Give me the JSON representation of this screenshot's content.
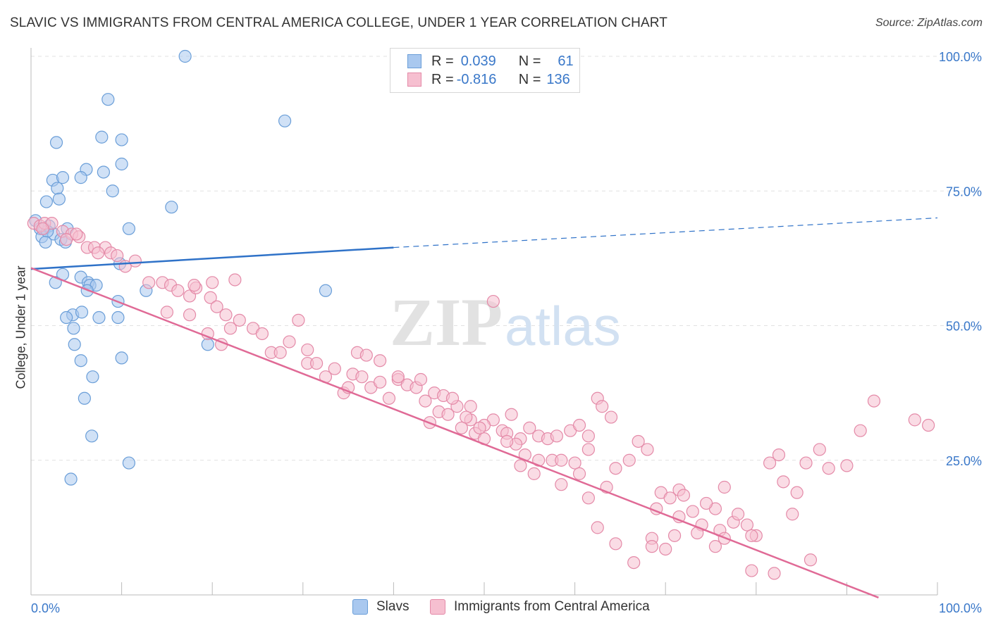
{
  "title": "SLAVIC VS IMMIGRANTS FROM CENTRAL AMERICA COLLEGE, UNDER 1 YEAR CORRELATION CHART",
  "source": "Source: ZipAtlas.com",
  "watermark": {
    "zip": "ZIP",
    "atlas": "atlas"
  },
  "legend_top": [
    {
      "r_label": "R =",
      "r_value": "0.039",
      "n_label": "N =",
      "n_value": "61",
      "color": "#a9c8ef",
      "border": "#6a9ed8"
    },
    {
      "r_label": "R =",
      "r_value": "-0.816",
      "n_label": "N =",
      "n_value": "136",
      "color": "#f6bfd0",
      "border": "#e48aa8"
    }
  ],
  "legend_bottom": [
    {
      "label": "Slavs",
      "color": "#a9c8ef",
      "border": "#6a9ed8"
    },
    {
      "label": "Immigrants from Central America",
      "color": "#f6bfd0",
      "border": "#e48aa8"
    }
  ],
  "chart_data": {
    "type": "scatter",
    "title": "SLAVIC VS IMMIGRANTS FROM CENTRAL AMERICA COLLEGE, UNDER 1 YEAR CORRELATION CHART",
    "xlabel": "",
    "ylabel": "College, Under 1 year",
    "xlim": [
      0,
      100
    ],
    "ylim": [
      0,
      100
    ],
    "x_tick_labels": [
      "0.0%",
      "100.0%"
    ],
    "y_tick_labels": [
      "25.0%",
      "50.0%",
      "75.0%",
      "100.0%"
    ],
    "y_ticks": [
      25,
      50,
      75,
      100
    ],
    "grid": true,
    "legend_position": "top-center",
    "series": [
      {
        "name": "Slavs",
        "color": "#6a9ed8",
        "fill": "#a9c8ef",
        "line_color": "#2f72c8",
        "trend": {
          "x": [
            0,
            40
          ],
          "y": [
            60.5,
            64.5
          ],
          "dashed_to": [
            100,
            70.0
          ]
        },
        "points": [
          [
            17,
            100
          ],
          [
            8.5,
            92
          ],
          [
            28,
            88
          ],
          [
            2.8,
            84
          ],
          [
            7.8,
            85
          ],
          [
            10,
            84.5
          ],
          [
            10,
            80
          ],
          [
            6.1,
            79
          ],
          [
            2.4,
            77
          ],
          [
            3.5,
            77.5
          ],
          [
            5.5,
            77.5
          ],
          [
            8,
            78.5
          ],
          [
            2.9,
            75.5
          ],
          [
            9,
            75
          ],
          [
            3.1,
            73.5
          ],
          [
            1.7,
            73
          ],
          [
            15.5,
            72
          ],
          [
            0.5,
            69.5
          ],
          [
            1,
            68
          ],
          [
            1.5,
            68
          ],
          [
            2,
            68.5
          ],
          [
            2.5,
            67
          ],
          [
            3.3,
            66
          ],
          [
            1.2,
            66.5
          ],
          [
            1.8,
            67.5
          ],
          [
            1.6,
            65.5
          ],
          [
            3.8,
            65.5
          ],
          [
            10.8,
            68
          ],
          [
            4,
            68
          ],
          [
            9.8,
            61.5
          ],
          [
            2.7,
            58
          ],
          [
            3.5,
            59.5
          ],
          [
            5.5,
            59
          ],
          [
            6.3,
            58
          ],
          [
            6.5,
            57.5
          ],
          [
            7.2,
            57.5
          ],
          [
            6.2,
            56.5
          ],
          [
            12.7,
            56.5
          ],
          [
            32.5,
            56.5
          ],
          [
            9.6,
            54.5
          ],
          [
            4.6,
            52
          ],
          [
            5.6,
            52.5
          ],
          [
            3.9,
            51.5
          ],
          [
            7.5,
            51.5
          ],
          [
            9.6,
            51.5
          ],
          [
            4.7,
            49.5
          ],
          [
            4.8,
            46.5
          ],
          [
            19.5,
            46.5
          ],
          [
            5.5,
            43.5
          ],
          [
            10,
            44
          ],
          [
            6.8,
            40.5
          ],
          [
            5.9,
            36.5
          ],
          [
            6.7,
            29.5
          ],
          [
            10.8,
            24.5
          ],
          [
            4.4,
            21.5
          ]
        ]
      },
      {
        "name": "Immigrants from Central America",
        "color": "#e48aa8",
        "fill": "#f6bfd0",
        "line_color": "#e06a96",
        "trend": {
          "x": [
            0,
            93.5
          ],
          "y": [
            60.7,
            -0.5
          ]
        },
        "points": [
          [
            0.3,
            69
          ],
          [
            1,
            68.5
          ],
          [
            1.5,
            69
          ],
          [
            2.3,
            69
          ],
          [
            1.3,
            68
          ],
          [
            3.5,
            67.5
          ],
          [
            4.5,
            67
          ],
          [
            5.3,
            66.5
          ],
          [
            6.2,
            64.5
          ],
          [
            7,
            64.5
          ],
          [
            8.2,
            64.5
          ],
          [
            7.4,
            63.5
          ],
          [
            8.8,
            63.5
          ],
          [
            9.5,
            63
          ],
          [
            3.9,
            66
          ],
          [
            5,
            67
          ],
          [
            10.4,
            61
          ],
          [
            11.5,
            62
          ],
          [
            13,
            58
          ],
          [
            14.5,
            58
          ],
          [
            15.4,
            57.5
          ],
          [
            16.2,
            56.5
          ],
          [
            17.5,
            55.5
          ],
          [
            18.2,
            57
          ],
          [
            19.8,
            55.2
          ],
          [
            20.5,
            53.5
          ],
          [
            21.5,
            52
          ],
          [
            22,
            49.5
          ],
          [
            23,
            51
          ],
          [
            24.5,
            49.5
          ],
          [
            25.5,
            48.5
          ],
          [
            26.5,
            45
          ],
          [
            27.5,
            45
          ],
          [
            28.5,
            47
          ],
          [
            29.5,
            51
          ],
          [
            17.5,
            52
          ],
          [
            15,
            52.5
          ],
          [
            18,
            57.5
          ],
          [
            20,
            58
          ],
          [
            22.5,
            58.5
          ],
          [
            19.5,
            48.5
          ],
          [
            21,
            46.5
          ],
          [
            30.5,
            45.5
          ],
          [
            30.5,
            43
          ],
          [
            31.5,
            43
          ],
          [
            32.5,
            40.5
          ],
          [
            33.5,
            42
          ],
          [
            34.5,
            37.5
          ],
          [
            35.5,
            41
          ],
          [
            36.5,
            40.5
          ],
          [
            37.5,
            38.5
          ],
          [
            38.5,
            39.5
          ],
          [
            39.5,
            36.5
          ],
          [
            40.5,
            40
          ],
          [
            41.5,
            39
          ],
          [
            43.5,
            36
          ],
          [
            44,
            32
          ],
          [
            45,
            34
          ],
          [
            46,
            33.5
          ],
          [
            47.5,
            31
          ],
          [
            48.5,
            35
          ],
          [
            49,
            30
          ],
          [
            50,
            29
          ],
          [
            51,
            32.5
          ],
          [
            52,
            30.5
          ],
          [
            53,
            33.5
          ],
          [
            54,
            29
          ],
          [
            55,
            31
          ],
          [
            56,
            29.5
          ],
          [
            57,
            29
          ],
          [
            58,
            29.5
          ],
          [
            59.5,
            30.5
          ],
          [
            60.5,
            31.5
          ],
          [
            61.5,
            29.5
          ],
          [
            62.5,
            36.5
          ],
          [
            63,
            35
          ],
          [
            64,
            33
          ],
          [
            35,
            38.5
          ],
          [
            36,
            45
          ],
          [
            37,
            44.5
          ],
          [
            38.5,
            43.5
          ],
          [
            40.5,
            40.5
          ],
          [
            42.5,
            38.5
          ],
          [
            44.5,
            37.5
          ],
          [
            45.5,
            37
          ],
          [
            47,
            35
          ],
          [
            48.5,
            32.5
          ],
          [
            50,
            31.5
          ],
          [
            52.5,
            30
          ],
          [
            53.5,
            28
          ],
          [
            54.5,
            26
          ],
          [
            56,
            25
          ],
          [
            57.5,
            25
          ],
          [
            58.5,
            25
          ],
          [
            60,
            24.5
          ],
          [
            61.5,
            27
          ],
          [
            63.5,
            20
          ],
          [
            64.5,
            23.5
          ],
          [
            66,
            25
          ],
          [
            67,
            28.5
          ],
          [
            68,
            27
          ],
          [
            69.5,
            19
          ],
          [
            70.5,
            18
          ],
          [
            71.5,
            19.5
          ],
          [
            73,
            15.5
          ],
          [
            74,
            13
          ],
          [
            75.5,
            16
          ],
          [
            76.5,
            20
          ],
          [
            77.5,
            13.5
          ],
          [
            78,
            15
          ],
          [
            79,
            13
          ],
          [
            80,
            11
          ],
          [
            81.5,
            24.5
          ],
          [
            82.5,
            26
          ],
          [
            83,
            21
          ],
          [
            84.5,
            19
          ],
          [
            85.5,
            24.5
          ],
          [
            87,
            27
          ],
          [
            88,
            23.5
          ],
          [
            90,
            24
          ],
          [
            91.5,
            30.5
          ],
          [
            93,
            36
          ],
          [
            97.5,
            32.5
          ],
          [
            99,
            31.5
          ],
          [
            68.5,
            10.5
          ],
          [
            71,
            11
          ],
          [
            72,
            18.5
          ],
          [
            74.5,
            17
          ],
          [
            76,
            12
          ],
          [
            79.5,
            11
          ],
          [
            51,
            54.5
          ],
          [
            43,
            40
          ],
          [
            46.5,
            36.5
          ],
          [
            48,
            33
          ],
          [
            49.5,
            31
          ],
          [
            52.5,
            28.5
          ],
          [
            54,
            24
          ],
          [
            55.5,
            22.5
          ],
          [
            58.5,
            20.5
          ],
          [
            60.5,
            22.5
          ],
          [
            61.5,
            18
          ],
          [
            62.5,
            12.5
          ],
          [
            64.5,
            9.5
          ],
          [
            66.5,
            6
          ],
          [
            68.5,
            9
          ],
          [
            69,
            16
          ],
          [
            70,
            8.5
          ],
          [
            71.5,
            14.5
          ],
          [
            73.5,
            11.5
          ],
          [
            75.5,
            9
          ],
          [
            76.5,
            10.5
          ],
          [
            79.5,
            4.5
          ],
          [
            82,
            4
          ],
          [
            84,
            15
          ],
          [
            86,
            6.5
          ]
        ]
      }
    ]
  }
}
